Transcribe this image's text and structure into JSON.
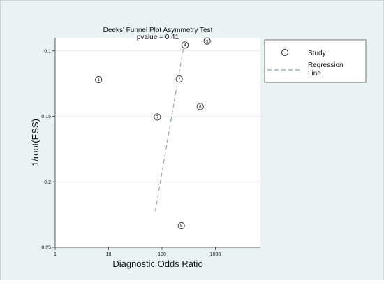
{
  "chart_data": {
    "type": "scatter",
    "title": "Deeks' Funnel Plot Asymmetry Test",
    "subtitle": "pvalue  =   0.41",
    "xlabel": "Diagnostic Odds Ratio",
    "ylabel": "1/root(ESS)",
    "x_scale": "log",
    "x_ticks": [
      {
        "value": 1,
        "label": "1"
      },
      {
        "value": 10,
        "label": "10"
      },
      {
        "value": 100,
        "label": "100"
      },
      {
        "value": 1000,
        "label": "1000"
      }
    ],
    "y_inverted": true,
    "ylim": [
      0.09,
      0.25
    ],
    "y_ticks": [
      {
        "value": 0.1,
        "label": "0.1"
      },
      {
        "value": 0.15,
        "label": "0.15"
      },
      {
        "value": 0.2,
        "label": "0.2"
      },
      {
        "value": 0.25,
        "label": "0.25"
      }
    ],
    "grid": "horizontal",
    "legend": {
      "position": "right",
      "study_label": "Study",
      "line_label_1": "Regression",
      "line_label_2": "Line"
    },
    "studies": [
      {
        "label": "1",
        "x": 6.5,
        "y": 0.122
      },
      {
        "label": "2",
        "x": 210,
        "y": 0.1215
      },
      {
        "label": "3",
        "x": 700,
        "y": 0.0925
      },
      {
        "label": "4",
        "x": 270,
        "y": 0.0955
      },
      {
        "label": "5",
        "x": 230,
        "y": 0.2335
      },
      {
        "label": "6",
        "x": 520,
        "y": 0.1425
      },
      {
        "label": "7",
        "x": 82,
        "y": 0.1505
      }
    ],
    "regression_line": [
      {
        "x": 75,
        "y": 0.2225
      },
      {
        "x": 260,
        "y": 0.0945
      }
    ],
    "colors": {
      "plot_bg": "#ffffff",
      "panel_bg": "#eaf2f3",
      "regression": "#8a9fb5",
      "grid": "#e3e8ea"
    }
  }
}
